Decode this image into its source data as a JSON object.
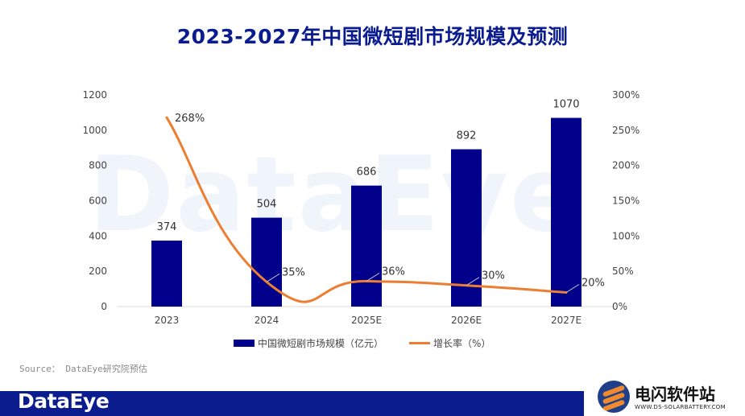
{
  "title": "2023-2027年中国微短剧市场规模及预测",
  "watermark": "DataEye",
  "source": "Source： DataEye研究院预估",
  "footer": {
    "logo": "DataEye"
  },
  "badge": {
    "name": "电闪软件站",
    "url": "WWW.DS-SOLARBATTERY.COM"
  },
  "chart_data": {
    "type": "bar+line",
    "categories": [
      "2023",
      "2024",
      "2025E",
      "2026E",
      "2027E"
    ],
    "series": [
      {
        "name": "中国微短剧市场规模（亿元）",
        "type": "bar",
        "axis": "left",
        "values": [
          374,
          504,
          686,
          892,
          1070
        ],
        "labels": [
          "374",
          "504",
          "686",
          "892",
          "1070"
        ],
        "color": "#00008b"
      },
      {
        "name": "增长率（%）",
        "type": "line",
        "axis": "right",
        "values": [
          268,
          35,
          36,
          30,
          20
        ],
        "labels": [
          "268%",
          "35%",
          "36%",
          "30%",
          "20%"
        ],
        "color": "#ed7d31"
      }
    ],
    "y_left": {
      "ylim": [
        0,
        1200
      ],
      "ticks": [
        "0",
        "200",
        "400",
        "600",
        "800",
        "1000",
        "1200"
      ]
    },
    "y_right": {
      "ylim": [
        0,
        300
      ],
      "ticks": [
        "0%",
        "50%",
        "100%",
        "150%",
        "200%",
        "250%",
        "300%"
      ]
    },
    "grid": false,
    "legend": "bottom"
  }
}
